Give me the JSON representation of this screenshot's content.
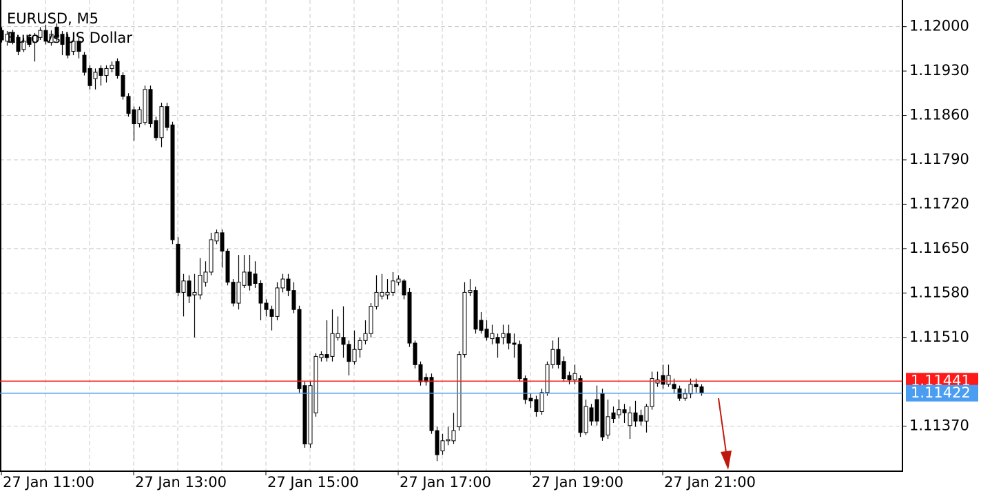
{
  "chart_data": {
    "type": "candlestick",
    "title": "EURUSD, M5",
    "subtitle": "Euro vs US Dollar",
    "categories": [
      "27 Jan 11:00",
      null,
      null,
      null,
      null,
      null,
      null,
      null,
      null,
      null,
      null,
      null,
      null,
      null,
      null,
      null,
      null,
      null,
      null,
      null,
      null,
      null,
      null,
      null,
      "27 Jan 13:00",
      null,
      null,
      null,
      null,
      null,
      null,
      null,
      null,
      null,
      null,
      null,
      null,
      null,
      null,
      null,
      null,
      null,
      null,
      null,
      null,
      null,
      null,
      null,
      "27 Jan 15:00",
      null,
      null,
      null,
      null,
      null,
      null,
      null,
      null,
      null,
      null,
      null,
      null,
      null,
      null,
      null,
      null,
      null,
      null,
      null,
      null,
      null,
      null,
      null,
      "27 Jan 17:00",
      null,
      null,
      null,
      null,
      null,
      null,
      null,
      null,
      null,
      null,
      null,
      null,
      null,
      null,
      null,
      null,
      null,
      null,
      null,
      null,
      null,
      null,
      null,
      "27 Jan 19:00",
      null,
      null,
      null,
      null,
      null,
      null,
      null,
      null,
      null,
      null,
      null,
      null,
      null,
      null,
      null,
      null,
      null,
      null,
      null,
      null,
      null,
      null,
      null,
      "27 Jan 21:00",
      null,
      null,
      null,
      null,
      null,
      null,
      null
    ],
    "open": [
      1.11994,
      1.11977,
      1.1199,
      1.11983,
      1.11964,
      1.11983,
      1.11975,
      1.11983,
      1.11994,
      1.11975,
      1.11999,
      1.11988,
      1.11983,
      1.11961,
      1.11977,
      1.11955,
      1.11934,
      1.11918,
      1.11934,
      1.11923,
      1.11934,
      1.11945,
      1.11923,
      1.1189,
      1.11869,
      1.11847,
      1.11849,
      1.11901,
      1.11852,
      1.11825,
      1.11874,
      1.11845,
      1.11657,
      1.11581,
      1.11599,
      1.11577,
      1.11577,
      1.11597,
      1.11613,
      1.11662,
      1.11675,
      1.11646,
      1.11597,
      1.11564,
      1.11592,
      1.11613,
      1.1161,
      1.11595,
      1.11564,
      1.11554,
      1.11543,
      1.11588,
      1.11602,
      1.11584,
      1.11554,
      1.11434,
      1.11342,
      1.11391,
      1.11478,
      1.11483,
      1.1148,
      1.1151,
      1.1151,
      1.11499,
      1.11472,
      1.11491,
      1.11505,
      1.11516,
      1.11559,
      1.11575,
      1.11577,
      1.11581,
      1.11597,
      1.11599,
      1.11581,
      1.11501,
      1.11467,
      1.11447,
      1.11447,
      1.11363,
      1.11331,
      1.11347,
      1.11347,
      1.11369,
      1.11483,
      1.11581,
      1.11584,
      1.11537,
      1.11523,
      1.11508,
      1.1151,
      1.1151,
      1.11516,
      1.11501,
      1.11499,
      1.11445,
      1.11414,
      1.11412,
      1.11393,
      1.11423,
      1.11467,
      1.11491,
      1.11472,
      1.1145,
      1.11443,
      1.11445,
      1.1136,
      1.11399,
      1.11412,
      1.11421,
      1.11356,
      1.11391,
      1.11388,
      1.11396,
      1.11371,
      1.11391,
      1.11387,
      1.11378,
      1.11401,
      1.11438,
      1.1145,
      1.11436,
      1.11436,
      1.11429,
      1.11414,
      1.11421,
      1.11436,
      1.11432
    ],
    "high": [
      1.11999,
      1.11993,
      1.11995,
      1.11986,
      1.11982,
      1.11988,
      1.1199,
      1.11999,
      1.12003,
      1.11994,
      1.12005,
      1.11993,
      1.11988,
      1.11982,
      1.11983,
      1.1196,
      1.11939,
      1.11934,
      1.11939,
      1.11939,
      1.11945,
      1.1195,
      1.11928,
      1.11895,
      1.11874,
      1.11874,
      1.11907,
      1.11907,
      1.11858,
      1.1188,
      1.1188,
      1.1185,
      1.11668,
      1.1161,
      1.11608,
      1.1161,
      1.11635,
      1.1163,
      1.11675,
      1.1168,
      1.1168,
      1.1165,
      1.11602,
      1.1164,
      1.1164,
      1.1164,
      1.1163,
      1.116,
      1.1157,
      1.1156,
      1.11597,
      1.1161,
      1.1161,
      1.11597,
      1.1156,
      1.1144,
      1.1144,
      1.11485,
      1.11488,
      1.11537,
      1.11554,
      1.11543,
      1.11559,
      1.11505,
      1.11521,
      1.1151,
      1.11537,
      1.11564,
      1.11608,
      1.1161,
      1.11602,
      1.11613,
      1.11608,
      1.11602,
      1.11588,
      1.11505,
      1.11472,
      1.11453,
      1.11453,
      1.11369,
      1.11358,
      1.11369,
      1.11391,
      1.11488,
      1.11597,
      1.11602,
      1.1159,
      1.1155,
      1.11537,
      1.1153,
      1.11516,
      1.1153,
      1.1153,
      1.11516,
      1.11505,
      1.1145,
      1.11421,
      1.11418,
      1.11429,
      1.11472,
      1.11505,
      1.1151,
      1.1148,
      1.11456,
      1.11467,
      1.1145,
      1.11412,
      1.11405,
      1.11434,
      1.11429,
      1.11412,
      1.11401,
      1.11412,
      1.11405,
      1.11401,
      1.1141,
      1.11396,
      1.11405,
      1.11456,
      1.11456,
      1.11467,
      1.11467,
      1.11445,
      1.11434,
      1.11429,
      1.11445,
      1.11445,
      1.11436
    ],
    "low": [
      1.11975,
      1.1197,
      1.11972,
      1.11955,
      1.1196,
      1.11968,
      1.11945,
      1.11979,
      1.11972,
      1.1197,
      1.11977,
      1.11955,
      1.1195,
      1.11955,
      1.1195,
      1.11923,
      1.11901,
      1.11901,
      1.11907,
      1.11912,
      1.11928,
      1.11918,
      1.11885,
      1.11858,
      1.1182,
      1.11841,
      1.11845,
      1.11841,
      1.1182,
      1.1181,
      1.11836,
      1.11657,
      1.11575,
      1.11543,
      1.11564,
      1.1151,
      1.1157,
      1.1159,
      1.11608,
      1.11657,
      1.1162,
      1.11592,
      1.11559,
      1.11554,
      1.11588,
      1.11584,
      1.11588,
      1.11537,
      1.11543,
      1.11521,
      1.11537,
      1.11581,
      1.11575,
      1.11548,
      1.11423,
      1.11336,
      1.11336,
      1.11385,
      1.11472,
      1.11472,
      1.11472,
      1.11505,
      1.11478,
      1.1145,
      1.11467,
      1.11478,
      1.11499,
      1.1151,
      1.11554,
      1.1157,
      1.1157,
      1.11575,
      1.11592,
      1.1157,
      1.11495,
      1.11461,
      1.11434,
      1.11434,
      1.11358,
      1.11315,
      1.11325,
      1.1134,
      1.11342,
      1.11363,
      1.11478,
      1.11575,
      1.11516,
      1.11516,
      1.11505,
      1.11499,
      1.11478,
      1.11499,
      1.11491,
      1.11478,
      1.1144,
      1.11405,
      1.11399,
      1.11385,
      1.11388,
      1.11418,
      1.11461,
      1.11461,
      1.1144,
      1.11436,
      1.11436,
      1.11353,
      1.11356,
      1.11371,
      1.11371,
      1.11347,
      1.1135,
      1.11375,
      1.11382,
      1.11375,
      1.1135,
      1.11369,
      1.11371,
      1.1136,
      1.11396,
      1.11432,
      1.11429,
      1.11432,
      1.11421,
      1.1141,
      1.1141,
      1.11414,
      1.11423,
      1.11418
    ],
    "close": [
      1.11979,
      1.11988,
      1.11977,
      1.11961,
      1.11977,
      1.11972,
      1.11986,
      1.11994,
      1.11977,
      1.11988,
      1.11983,
      1.11972,
      1.11955,
      1.11977,
      1.11961,
      1.11928,
      1.11907,
      1.11928,
      1.11923,
      1.11934,
      1.11939,
      1.11923,
      1.1189,
      1.11863,
      1.11847,
      1.11869,
      1.11901,
      1.11847,
      1.11825,
      1.11874,
      1.11841,
      1.11664,
      1.11581,
      1.11599,
      1.11575,
      1.11581,
      1.11608,
      1.11613,
      1.11664,
      1.11675,
      1.11646,
      1.11597,
      1.11564,
      1.11597,
      1.11613,
      1.11592,
      1.11595,
      1.11564,
      1.11554,
      1.11543,
      1.11588,
      1.11602,
      1.11584,
      1.11554,
      1.11429,
      1.11342,
      1.11434,
      1.1148,
      1.11483,
      1.11478,
      1.11516,
      1.11516,
      1.11499,
      1.11472,
      1.11491,
      1.11505,
      1.11516,
      1.11559,
      1.11581,
      1.11581,
      1.11581,
      1.11599,
      1.11602,
      1.11577,
      1.11501,
      1.11467,
      1.1144,
      1.1144,
      1.11363,
      1.11325,
      1.11347,
      1.11349,
      1.11363,
      1.11483,
      1.11581,
      1.11584,
      1.11523,
      1.11521,
      1.1151,
      1.11516,
      1.11501,
      1.11516,
      1.11501,
      1.11499,
      1.11445,
      1.11412,
      1.1141,
      1.11393,
      1.11423,
      1.11467,
      1.11491,
      1.11467,
      1.11445,
      1.11443,
      1.11453,
      1.1136,
      1.11401,
      1.11378,
      1.11378,
      1.11353,
      1.11385,
      1.11382,
      1.11396,
      1.11391,
      1.11391,
      1.11378,
      1.11378,
      1.11401,
      1.11445,
      1.11443,
      1.11436,
      1.1145,
      1.11429,
      1.11414,
      1.11421,
      1.11436,
      1.11432,
      1.11422
    ],
    "up_color": "#ffffff",
    "down_color": "#000000",
    "wick_color": "#000000",
    "ylim": [
      1.11299,
      1.12042
    ],
    "yticks": [
      {
        "value": 1.12,
        "label": "1.12000"
      },
      {
        "value": 1.1193,
        "label": "1.11930"
      },
      {
        "value": 1.1186,
        "label": "1.11860"
      },
      {
        "value": 1.1179,
        "label": "1.11790"
      },
      {
        "value": 1.1172,
        "label": "1.11720"
      },
      {
        "value": 1.1165,
        "label": "1.11650"
      },
      {
        "value": 1.1158,
        "label": "1.11580"
      },
      {
        "value": 1.1151,
        "label": "1.11510"
      },
      {
        "value": 1.1137,
        "label": "1.11370"
      }
    ],
    "price_lines": [
      {
        "value": 1.11441,
        "color": "#ff1a1a"
      },
      {
        "value": 1.11422,
        "color": "#4a9df0"
      }
    ],
    "grid": true
  }
}
